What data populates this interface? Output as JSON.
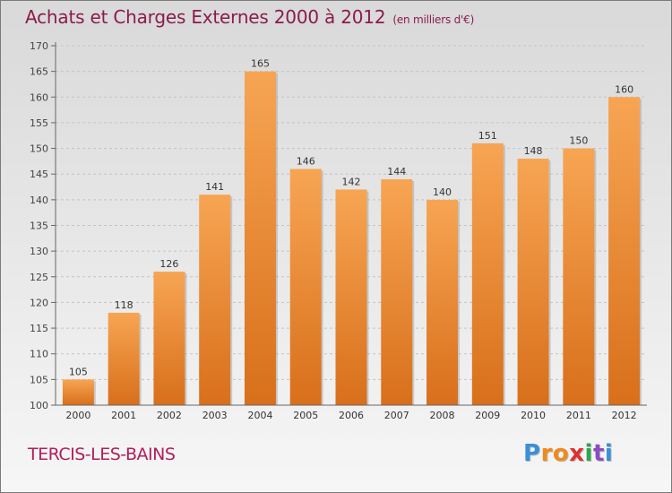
{
  "title": "Achats et Charges Externes 2000 à 2012",
  "subtitle": "(en milliers d'€)",
  "commune": "TERCIS-LES-BAINS",
  "logo": {
    "letters": [
      "P",
      "r",
      "o",
      "x",
      "i",
      "t",
      "i"
    ],
    "colors": [
      "#3a8fd8",
      "#f08a1c",
      "#f08a1c",
      "#e03030",
      "#2aa84a",
      "#8a4ec0",
      "#3a8fd8"
    ]
  },
  "colors": {
    "title": "#8a1c4d",
    "bar_top": "#f7a553",
    "bar_bottom": "#d86f1b"
  },
  "chart_data": {
    "type": "bar",
    "categories": [
      "2000",
      "2001",
      "2002",
      "2003",
      "2004",
      "2005",
      "2006",
      "2007",
      "2008",
      "2009",
      "2010",
      "2011",
      "2012"
    ],
    "values": [
      105,
      118,
      126,
      141,
      165,
      146,
      142,
      144,
      140,
      151,
      148,
      150,
      160
    ],
    "ylim": [
      100,
      170
    ],
    "yticks": [
      100,
      105,
      110,
      115,
      120,
      125,
      130,
      135,
      140,
      145,
      150,
      155,
      160,
      165,
      170
    ],
    "grid": true,
    "legend": "none"
  }
}
